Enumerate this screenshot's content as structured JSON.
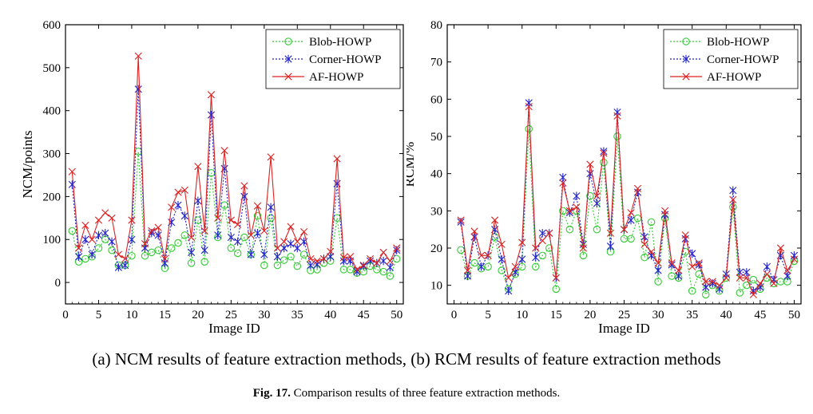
{
  "subcaption": "(a) NCM results of feature extraction methods, (b) RCM results of feature extraction methods",
  "figure_caption": {
    "label": "Fig. 17.",
    "text": "Comparison results of three feature extraction methods."
  },
  "colors": {
    "blob": "#33cc33",
    "corner": "#2222cc",
    "af": "#dd2222"
  },
  "chart_data": [
    {
      "type": "line",
      "xlabel": "Image ID",
      "ylabel": "NCM/points",
      "xlim": [
        0,
        51
      ],
      "ylim": [
        -50,
        600
      ],
      "xticks": [
        0,
        5,
        10,
        15,
        20,
        25,
        30,
        35,
        40,
        45,
        50
      ],
      "yticks": [
        0,
        100,
        200,
        300,
        400,
        500,
        600
      ],
      "legend_position": "top-right",
      "x": [
        1,
        2,
        3,
        4,
        5,
        6,
        7,
        8,
        9,
        10,
        11,
        12,
        13,
        14,
        15,
        16,
        17,
        18,
        19,
        20,
        21,
        22,
        23,
        24,
        25,
        26,
        27,
        28,
        29,
        30,
        31,
        32,
        33,
        34,
        35,
        36,
        37,
        38,
        39,
        40,
        41,
        42,
        43,
        44,
        45,
        46,
        47,
        48,
        49,
        50
      ],
      "series": [
        {
          "name": "Blob-HOWP",
          "key": "blob",
          "marker": "circle",
          "values": [
            120,
            48,
            55,
            60,
            80,
            100,
            75,
            40,
            40,
            62,
            305,
            62,
            70,
            75,
            33,
            80,
            92,
            110,
            45,
            145,
            48,
            255,
            105,
            180,
            80,
            68,
            105,
            65,
            155,
            40,
            150,
            40,
            52,
            60,
            38,
            65,
            28,
            30,
            45,
            50,
            150,
            30,
            30,
            22,
            25,
            38,
            30,
            25,
            15,
            55
          ]
        },
        {
          "name": "Corner-HOWP",
          "key": "corner",
          "marker": "star",
          "values": [
            228,
            60,
            100,
            65,
            110,
            115,
            95,
            35,
            40,
            100,
            450,
            80,
            115,
            110,
            45,
            140,
            180,
            155,
            70,
            190,
            75,
            390,
            110,
            265,
            105,
            95,
            200,
            65,
            115,
            65,
            175,
            60,
            80,
            90,
            80,
            95,
            40,
            42,
            55,
            60,
            230,
            50,
            50,
            25,
            38,
            50,
            45,
            50,
            35,
            75
          ]
        },
        {
          "name": "AF-HOWP",
          "key": "af",
          "marker": "cross",
          "values": [
            258,
            80,
            133,
            100,
            145,
            162,
            150,
            65,
            55,
            145,
            527,
            90,
            120,
            128,
            55,
            175,
            210,
            215,
            105,
            270,
            120,
            437,
            150,
            307,
            145,
            135,
            225,
            110,
            178,
            120,
            292,
            80,
            95,
            130,
            95,
            118,
            55,
            50,
            55,
            72,
            288,
            58,
            60,
            30,
            40,
            55,
            45,
            70,
            50,
            80
          ]
        }
      ]
    },
    {
      "type": "line",
      "xlabel": "Image ID",
      "ylabel": "RCM/%",
      "xlim": [
        -1,
        51
      ],
      "ylim": [
        5,
        80
      ],
      "xticks": [
        0,
        5,
        10,
        15,
        20,
        25,
        30,
        35,
        40,
        45,
        50
      ],
      "yticks": [
        10,
        20,
        30,
        40,
        50,
        60,
        70,
        80
      ],
      "legend_position": "top-right",
      "x": [
        1,
        2,
        3,
        4,
        5,
        6,
        7,
        8,
        9,
        10,
        11,
        12,
        13,
        14,
        15,
        16,
        17,
        18,
        19,
        20,
        21,
        22,
        23,
        24,
        25,
        26,
        27,
        28,
        29,
        30,
        31,
        32,
        33,
        34,
        35,
        36,
        37,
        38,
        39,
        40,
        41,
        42,
        43,
        44,
        45,
        46,
        47,
        48,
        49,
        50
      ],
      "series": [
        {
          "name": "Blob-HOWP",
          "key": "blob",
          "marker": "circle",
          "values": [
            19.5,
            12.5,
            16,
            14.5,
            15,
            23,
            14,
            9,
            13,
            15,
            52,
            15,
            18,
            20,
            9,
            30,
            25,
            30,
            18,
            34,
            25,
            43,
            19,
            50,
            22.5,
            22.5,
            28,
            17.5,
            27,
            11,
            28,
            12.5,
            12,
            19,
            8.5,
            13,
            7.5,
            10,
            8.5,
            12,
            31,
            8,
            10,
            11.5,
            9,
            12,
            10.5,
            11,
            11,
            16.5
          ]
        },
        {
          "name": "Corner-HOWP",
          "key": "corner",
          "marker": "star",
          "values": [
            27,
            12.5,
            23,
            15,
            18,
            25,
            17,
            8.5,
            13.5,
            17,
            59,
            17.5,
            24,
            24,
            12,
            39,
            29.5,
            34,
            21,
            40,
            32,
            46,
            20.5,
            56.5,
            25,
            27.5,
            35,
            23,
            18,
            14,
            29,
            15.5,
            12.5,
            22.5,
            18.5,
            15.5,
            9.5,
            10.5,
            9,
            13,
            35.5,
            13.5,
            13.5,
            8.5,
            9.5,
            15,
            11.5,
            18,
            12.5,
            18
          ]
        },
        {
          "name": "AF-HOWP",
          "key": "af",
          "marker": "cross",
          "values": [
            27.5,
            14,
            24.5,
            18,
            18,
            27.5,
            21,
            12,
            15,
            21.5,
            58,
            20,
            22,
            24,
            12,
            37.5,
            30,
            31,
            20,
            42.5,
            34,
            45.5,
            24,
            55.5,
            25,
            29.5,
            36,
            21,
            19,
            16,
            30,
            16,
            14,
            23.5,
            15,
            16,
            11,
            11,
            10,
            12,
            33,
            12,
            12,
            7.5,
            10.5,
            13,
            10.5,
            20,
            14,
            17
          ]
        }
      ]
    }
  ]
}
